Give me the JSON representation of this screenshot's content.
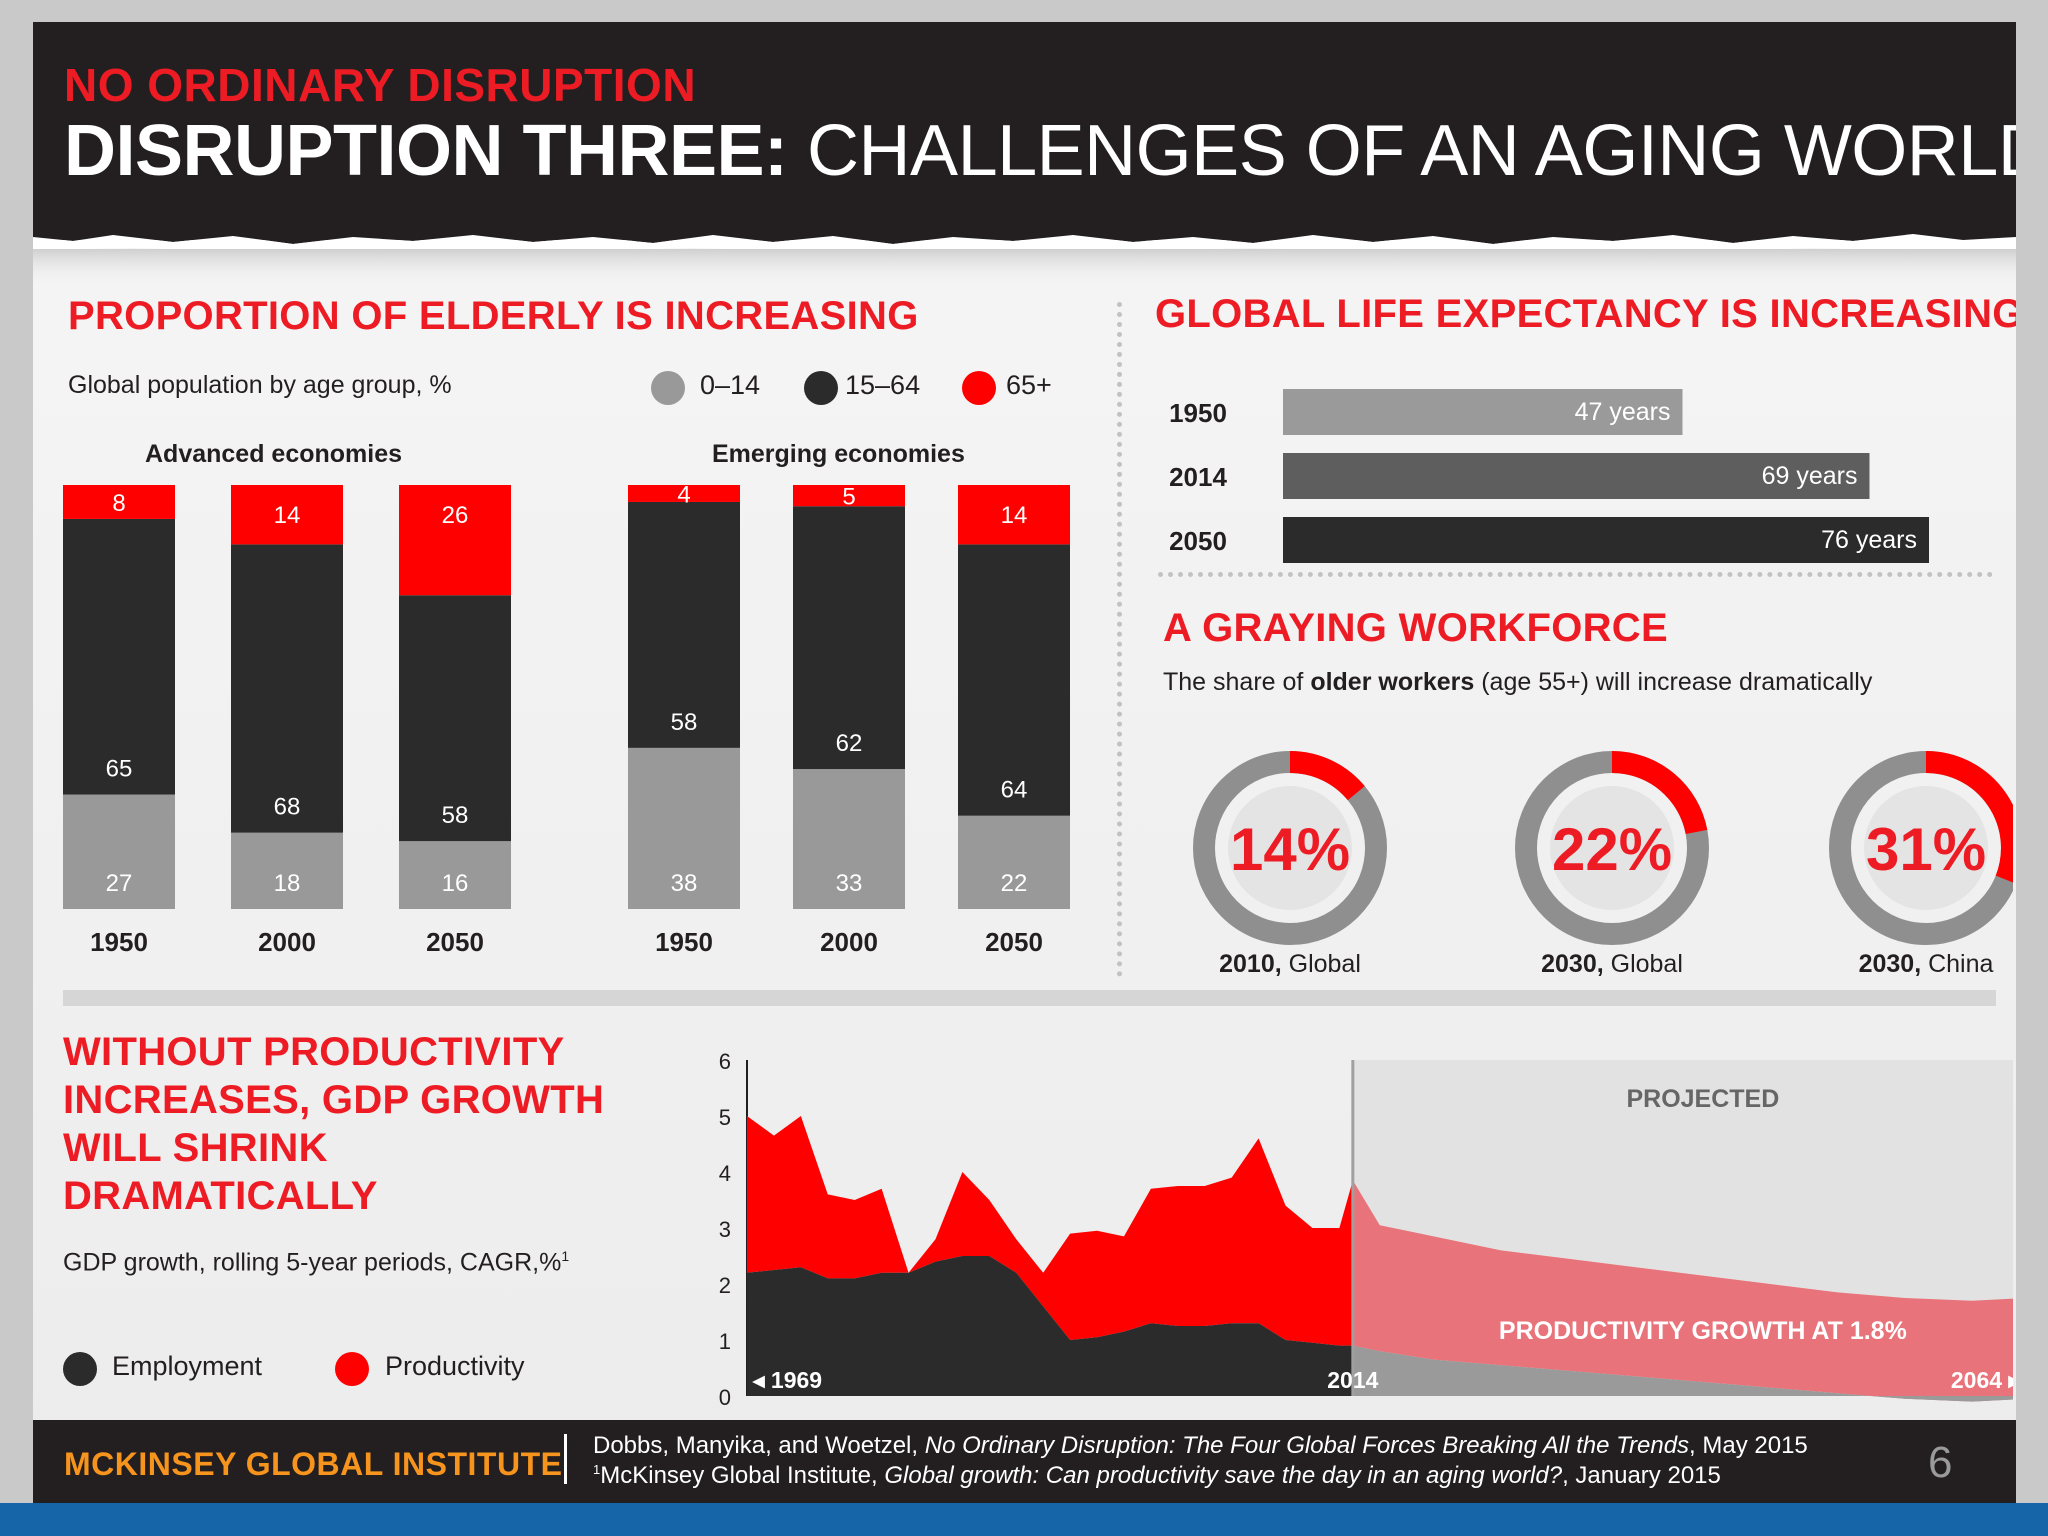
{
  "header": {
    "kicker": "NO ORDINARY DISRUPTION",
    "title_bold": "DISRUPTION THREE:",
    "title_rest": "CHALLENGES OF AN AGING WORLD"
  },
  "elderly": {
    "title": "PROPORTION OF ELDERLY IS INCREASING",
    "subtitle": "Global population by age group, %",
    "legend": [
      {
        "label": "0–14",
        "color": "#999999"
      },
      {
        "label": "15–64",
        "color": "#2b2b2b"
      },
      {
        "label": "65+",
        "color": "#ff0000"
      }
    ],
    "group_labels": [
      "Advanced economies",
      "Emerging economies"
    ]
  },
  "life": {
    "title": "GLOBAL LIFE EXPECTANCY IS INCREASING"
  },
  "workforce": {
    "title": "A GRAYING WORKFORCE",
    "subtitle_pre": "The share of ",
    "subtitle_bold": "older workers",
    "subtitle_post": " (age 55+) will increase dramatically",
    "donuts": [
      {
        "value": 14,
        "label": "14%",
        "year": "2010,",
        "region": "Global"
      },
      {
        "value": 22,
        "label": "22%",
        "year": "2030,",
        "region": "Global"
      },
      {
        "value": 31,
        "label": "31%",
        "year": "2030,",
        "region": "China"
      }
    ]
  },
  "gdp": {
    "title_lines": [
      "WITHOUT PRODUCTIVITY",
      "INCREASES, GDP GROWTH",
      "WILL SHRINK",
      "DRAMATICALLY"
    ],
    "subtitle": "GDP growth, rolling 5-year periods, CAGR,%",
    "footnote_mark": "1",
    "legend": [
      {
        "label": "Employment",
        "color": "#2b2b2b"
      },
      {
        "label": "Productivity",
        "color": "#ff0000"
      }
    ],
    "projected_label": "PROJECTED",
    "productivity_label": "PRODUCTIVITY GROWTH AT 1.8%",
    "start_label": "◂ 1969",
    "mid_label": "2014",
    "end_label": "2064 ▸"
  },
  "chart_data": [
    {
      "type": "bar",
      "stacked": true,
      "title": "Advanced economies",
      "categories": [
        "1950",
        "2000",
        "2050"
      ],
      "series": [
        {
          "name": "0–14",
          "values": [
            27,
            18,
            16
          ],
          "color": "#999999"
        },
        {
          "name": "15–64",
          "values": [
            65,
            68,
            58
          ],
          "color": "#2b2b2b"
        },
        {
          "name": "65+",
          "values": [
            8,
            14,
            26
          ],
          "color": "#ff0000"
        }
      ],
      "ylim": [
        0,
        100
      ]
    },
    {
      "type": "bar",
      "stacked": true,
      "title": "Emerging economies",
      "categories": [
        "1950",
        "2000",
        "2050"
      ],
      "series": [
        {
          "name": "0–14",
          "values": [
            38,
            33,
            22
          ],
          "color": "#999999"
        },
        {
          "name": "15–64",
          "values": [
            58,
            62,
            64
          ],
          "color": "#2b2b2b"
        },
        {
          "name": "65+",
          "values": [
            4,
            5,
            14
          ],
          "color": "#ff0000"
        }
      ],
      "ylim": [
        0,
        100
      ]
    },
    {
      "type": "bar",
      "orientation": "horizontal",
      "title": "GLOBAL LIFE EXPECTANCY IS INCREASING",
      "categories": [
        "1950",
        "2014",
        "2050"
      ],
      "values": [
        47,
        69,
        76
      ],
      "value_labels": [
        "47 years",
        "69 years",
        "76 years"
      ],
      "colors": [
        "#9a9a9a",
        "#5e5e5e",
        "#2b2b2b"
      ],
      "xlim": [
        0,
        90
      ]
    },
    {
      "type": "pie",
      "title": "A GRAYING WORKFORCE",
      "categories": [
        "2010, Global",
        "2030, Global",
        "2030, China"
      ],
      "values": [
        14,
        22,
        31
      ]
    },
    {
      "type": "area",
      "stacked": true,
      "title": "WITHOUT PRODUCTIVITY INCREASES, GDP GROWTH WILL SHRINK DRAMATICALLY",
      "ylabel": "GDP growth, rolling 5-year periods, CAGR,%",
      "ylim": [
        0,
        6
      ],
      "yticks": [
        "0",
        "1",
        "2",
        "3",
        "4",
        "5",
        "6"
      ],
      "xlim": [
        1969,
        2064
      ],
      "projection_start": 2014,
      "x": [
        1969,
        1971,
        1973,
        1975,
        1977,
        1979,
        1981,
        1983,
        1985,
        1987,
        1989,
        1991,
        1993,
        1995,
        1997,
        1999,
        2001,
        2003,
        2005,
        2007,
        2009,
        2011,
        2013,
        2014,
        2016,
        2020,
        2025,
        2030,
        2035,
        2040,
        2045,
        2050,
        2055,
        2060,
        2064
      ],
      "series": [
        {
          "name": "Employment",
          "color": "#2b2b2b",
          "values": [
            2.2,
            2.25,
            2.3,
            2.1,
            2.1,
            2.2,
            2.2,
            2.4,
            2.5,
            2.5,
            2.2,
            1.6,
            1.0,
            1.05,
            1.15,
            1.3,
            1.25,
            1.25,
            1.3,
            1.3,
            1.0,
            0.95,
            0.9,
            0.9,
            0.8,
            0.65,
            0.55,
            0.45,
            0.35,
            0.25,
            0.15,
            0.05,
            -0.05,
            -0.1,
            -0.05
          ]
        },
        {
          "name": "Productivity",
          "color": "#ff0000",
          "values": [
            2.8,
            2.4,
            2.7,
            1.5,
            1.4,
            1.5,
            0.0,
            0.4,
            1.5,
            1.0,
            0.6,
            0.6,
            1.9,
            1.9,
            1.7,
            2.4,
            2.5,
            2.5,
            2.6,
            3.3,
            2.4,
            2.05,
            2.1,
            2.95,
            2.25,
            2.2,
            2.05,
            2.0,
            1.95,
            1.9,
            1.85,
            1.8,
            1.8,
            1.8,
            1.8
          ]
        }
      ]
    }
  ],
  "footer": {
    "org": "MCKINSEY GLOBAL INSTITUTE",
    "cite1_pre": "Dobbs, Manyika, and Woetzel, ",
    "cite1_italic": "No Ordinary Disruption: The Four Global Forces Breaking All the Trends",
    "cite1_post": ", May 2015",
    "cite2_mark": "1",
    "cite2_pre": "McKinsey Global Institute, ",
    "cite2_italic": "Global growth: Can productivity save the day in an aging world?",
    "cite2_post": ", January 2015",
    "page": "6"
  }
}
